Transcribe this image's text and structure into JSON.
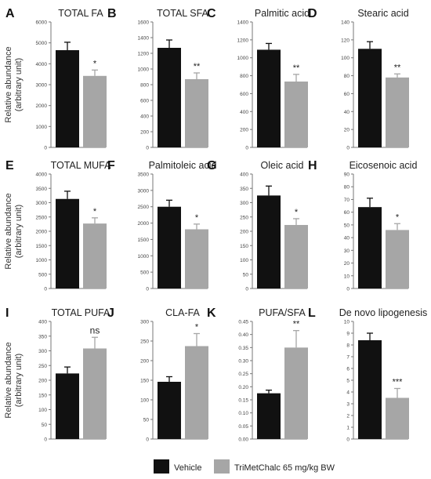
{
  "figure": {
    "ylabel_line1": "Relative abundance",
    "ylabel_line2": "(arbitrary unit)",
    "legend": [
      {
        "label": "Vehicle",
        "color": "#111111"
      },
      {
        "label": "TriMetChalc 65 mg/kg BW",
        "color": "#a6a6a6"
      }
    ]
  },
  "chart_data": [
    {
      "panel": "A",
      "type": "bar",
      "title": "TOTAL FA",
      "categories": [
        "Vehicle",
        "TriMetChalc 65 mg/kg BW"
      ],
      "values": [
        4650,
        3420
      ],
      "errors": [
        380,
        280
      ],
      "significance": "*",
      "ylim": [
        0,
        6000
      ],
      "yticks": [
        0,
        1000,
        2000,
        3000,
        4000,
        5000,
        6000
      ]
    },
    {
      "panel": "B",
      "type": "bar",
      "title": "TOTAL SFA",
      "categories": [
        "Vehicle",
        "TriMetChalc 65 mg/kg BW"
      ],
      "values": [
        1270,
        870
      ],
      "errors": [
        100,
        80
      ],
      "significance": "**",
      "ylim": [
        0,
        1600
      ],
      "yticks": [
        0,
        200,
        400,
        600,
        800,
        1000,
        1200,
        1400,
        1600
      ]
    },
    {
      "panel": "C",
      "type": "bar",
      "title": "Palmitic acid",
      "categories": [
        "Vehicle",
        "TriMetChalc 65 mg/kg BW"
      ],
      "values": [
        1090,
        735
      ],
      "errors": [
        70,
        80
      ],
      "significance": "**",
      "ylim": [
        0,
        1400
      ],
      "yticks": [
        0,
        200,
        400,
        600,
        800,
        1000,
        1200,
        1400
      ]
    },
    {
      "panel": "D",
      "type": "bar",
      "title": "Stearic acid",
      "categories": [
        "Vehicle",
        "TriMetChalc 65 mg/kg BW"
      ],
      "values": [
        110,
        78
      ],
      "errors": [
        8,
        4
      ],
      "significance": "**",
      "ylim": [
        0,
        140
      ],
      "yticks": [
        0,
        20,
        40,
        60,
        80,
        100,
        120,
        140
      ]
    },
    {
      "panel": "E",
      "type": "bar",
      "title": "TOTAL MUFA",
      "categories": [
        "Vehicle",
        "TriMetChalc 65 mg/kg BW"
      ],
      "values": [
        3130,
        2270
      ],
      "errors": [
        270,
        200
      ],
      "significance": "*",
      "ylim": [
        0,
        4000
      ],
      "yticks": [
        0,
        500,
        1000,
        1500,
        2000,
        2500,
        3000,
        3500,
        4000
      ]
    },
    {
      "panel": "F",
      "type": "bar",
      "title": "Palmitoleic acid",
      "categories": [
        "Vehicle",
        "TriMetChalc 65 mg/kg BW"
      ],
      "values": [
        2500,
        1810
      ],
      "errors": [
        200,
        160
      ],
      "significance": "*",
      "ylim": [
        0,
        3500
      ],
      "yticks": [
        0,
        500,
        1000,
        1500,
        2000,
        2500,
        3000,
        3500
      ]
    },
    {
      "panel": "G",
      "type": "bar",
      "title": "Oleic acid",
      "categories": [
        "Vehicle",
        "TriMetChalc 65 mg/kg BW"
      ],
      "values": [
        325,
        222
      ],
      "errors": [
        33,
        22
      ],
      "significance": "*",
      "ylim": [
        0,
        400
      ],
      "yticks": [
        0,
        50,
        100,
        150,
        200,
        250,
        300,
        350,
        400
      ]
    },
    {
      "panel": "H",
      "type": "bar",
      "title": "Eicosenoic acid",
      "categories": [
        "Vehicle",
        "TriMetChalc 65 mg/kg BW"
      ],
      "values": [
        64,
        46
      ],
      "errors": [
        7,
        5
      ],
      "significance": "*",
      "ylim": [
        0,
        90
      ],
      "yticks": [
        0,
        10,
        20,
        30,
        40,
        50,
        60,
        70,
        80,
        90
      ]
    },
    {
      "panel": "I",
      "type": "bar",
      "title": "TOTAL PUFA",
      "categories": [
        "Vehicle",
        "TriMetChalc 65 mg/kg BW"
      ],
      "values": [
        223,
        308
      ],
      "errors": [
        22,
        38
      ],
      "significance": "ns",
      "ylim": [
        0,
        400
      ],
      "yticks": [
        0,
        50,
        100,
        150,
        200,
        250,
        300,
        350,
        400
      ]
    },
    {
      "panel": "J",
      "type": "bar",
      "title": "CLA-FA",
      "categories": [
        "Vehicle",
        "TriMetChalc 65 mg/kg BW"
      ],
      "values": [
        146,
        237
      ],
      "errors": [
        13,
        32
      ],
      "significance": "*",
      "ylim": [
        0,
        300
      ],
      "yticks": [
        0,
        50,
        100,
        150,
        200,
        250,
        300
      ]
    },
    {
      "panel": "K",
      "type": "bar",
      "title": "PUFA/SFA",
      "categories": [
        "Vehicle",
        "TriMetChalc 65 mg/kg BW"
      ],
      "values": [
        0.175,
        0.35
      ],
      "errors": [
        0.012,
        0.065
      ],
      "significance": "**",
      "ylim": [
        0,
        0.45
      ],
      "yticks": [
        0,
        0.05,
        0.1,
        0.15,
        0.2,
        0.25,
        0.3,
        0.35,
        0.4,
        0.45
      ],
      "decimals": 2
    },
    {
      "panel": "L",
      "type": "bar",
      "title": "De novo lipogenesis",
      "categories": [
        "Vehicle",
        "TriMetChalc 65 mg/kg BW"
      ],
      "values": [
        8.4,
        3.5
      ],
      "errors": [
        0.6,
        0.8
      ],
      "significance": "***",
      "ylim": [
        0,
        10
      ],
      "yticks": [
        0,
        1,
        2,
        3,
        4,
        5,
        6,
        7,
        8,
        9,
        10
      ]
    }
  ]
}
